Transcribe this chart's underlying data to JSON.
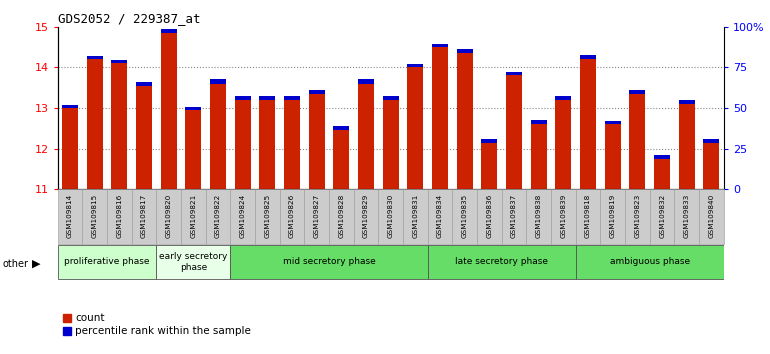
{
  "title": "GDS2052 / 229387_at",
  "samples": [
    "GSM109814",
    "GSM109815",
    "GSM109816",
    "GSM109817",
    "GSM109820",
    "GSM109821",
    "GSM109822",
    "GSM109824",
    "GSM109825",
    "GSM109826",
    "GSM109827",
    "GSM109828",
    "GSM109829",
    "GSM109830",
    "GSM109831",
    "GSM109834",
    "GSM109835",
    "GSM109836",
    "GSM109837",
    "GSM109838",
    "GSM109839",
    "GSM109818",
    "GSM109819",
    "GSM109823",
    "GSM109832",
    "GSM109833",
    "GSM109840"
  ],
  "red_values": [
    13.0,
    14.2,
    14.1,
    13.55,
    14.83,
    12.95,
    13.6,
    13.2,
    13.2,
    13.2,
    13.35,
    12.45,
    13.6,
    13.2,
    14.0,
    14.5,
    14.35,
    12.15,
    13.8,
    12.6,
    13.2,
    14.2,
    12.6,
    13.35,
    11.75,
    13.1,
    12.15
  ],
  "blue_values": [
    0.08,
    0.08,
    0.08,
    0.1,
    0.1,
    0.08,
    0.1,
    0.1,
    0.1,
    0.1,
    0.08,
    0.1,
    0.1,
    0.1,
    0.08,
    0.08,
    0.1,
    0.08,
    0.08,
    0.1,
    0.1,
    0.1,
    0.08,
    0.1,
    0.1,
    0.1,
    0.1
  ],
  "ylim_left": [
    11,
    15
  ],
  "ylim_right": [
    0,
    100
  ],
  "yticks_left": [
    11,
    12,
    13,
    14,
    15
  ],
  "yticks_right": [
    0,
    25,
    50,
    75,
    100
  ],
  "ytick_labels_right": [
    "0",
    "25",
    "50",
    "75",
    "100%"
  ],
  "bar_bottom": 11,
  "phases": [
    {
      "label": "proliferative phase",
      "start": 0,
      "end": 4,
      "color": "#ccffcc"
    },
    {
      "label": "early secretory\nphase",
      "start": 4,
      "end": 7,
      "color": "#e8ffe8"
    },
    {
      "label": "mid secretory phase",
      "start": 7,
      "end": 15,
      "color": "#66dd66"
    },
    {
      "label": "late secretory phase",
      "start": 15,
      "end": 21,
      "color": "#66dd66"
    },
    {
      "label": "ambiguous phase",
      "start": 21,
      "end": 27,
      "color": "#66dd66"
    }
  ],
  "red_color": "#cc2200",
  "blue_color": "#0000cc",
  "plot_bg_color": "#ffffff",
  "tick_bg_color": "#cccccc",
  "grid_color": "#888888"
}
